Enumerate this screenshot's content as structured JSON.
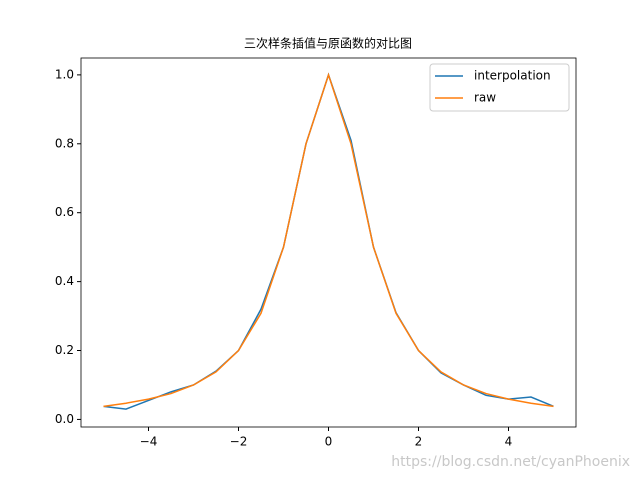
{
  "chart_data": {
    "type": "line",
    "title": "三次样条插值与原函数的对比图",
    "x": [
      -5,
      -4.5,
      -4,
      -3.5,
      -3,
      -2.5,
      -2,
      -1.5,
      -1,
      -0.5,
      0,
      0.5,
      1,
      1.5,
      2,
      2.5,
      3,
      3.5,
      4,
      4.5,
      5
    ],
    "series": [
      {
        "name": "interpolation",
        "color": "#1f77b4",
        "values": [
          0.038,
          0.03,
          0.055,
          0.08,
          0.1,
          0.14,
          0.2,
          0.32,
          0.5,
          0.8,
          1,
          0.81,
          0.5,
          0.31,
          0.2,
          0.135,
          0.1,
          0.07,
          0.059,
          0.065,
          0.038
        ]
      },
      {
        "name": "raw",
        "color": "#ff7f0e",
        "values": [
          0.038,
          0.047,
          0.059,
          0.075,
          0.1,
          0.138,
          0.2,
          0.308,
          0.5,
          0.8,
          1,
          0.8,
          0.5,
          0.308,
          0.2,
          0.138,
          0.1,
          0.075,
          0.059,
          0.047,
          0.038
        ]
      }
    ],
    "xlim": [
      -5.5,
      5.5
    ],
    "ylim": [
      -0.022,
      1.049
    ],
    "xticks": [
      {
        "value": -4,
        "label": "−4"
      },
      {
        "value": -2,
        "label": "−2"
      },
      {
        "value": 0,
        "label": "0"
      },
      {
        "value": 2,
        "label": "2"
      },
      {
        "value": 4,
        "label": "4"
      }
    ],
    "yticks": [
      {
        "value": 0,
        "label": "0.0"
      },
      0.2,
      0.4,
      0.6,
      0.8,
      {
        "value": 1,
        "label": "1.0"
      }
    ],
    "legend": "upper right",
    "watermark": "https://blog.csdn.net/cyanPhoenix"
  }
}
